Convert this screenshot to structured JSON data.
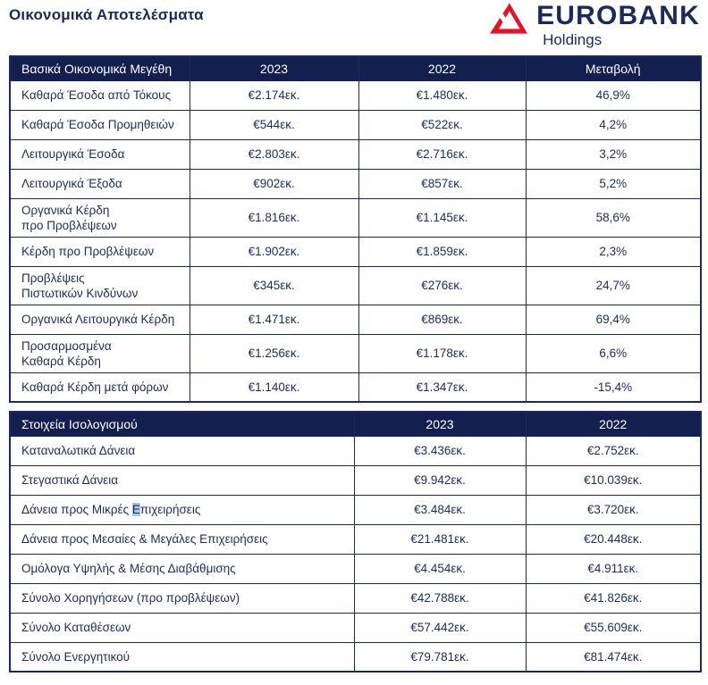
{
  "page_title": "Οικονομικά Αποτελέσματα",
  "logo": {
    "brand": "EUROBANK",
    "subtitle": "Holdings",
    "icon": "eurobank-triangle-icon",
    "red": "#E3132C",
    "navy": "#1C2A5A"
  },
  "colors": {
    "header_background": "#131F4E",
    "border_navy": "#1B2A5B",
    "text_navy": "#1E2C5E",
    "selection_highlight": "#A9C7E8"
  },
  "results_table": {
    "headers": {
      "label": "Βασικά Οικονομικά Μεγέθη",
      "col2023": "2023",
      "col2022": "2022",
      "change": "Μεταβολή"
    },
    "rows": [
      {
        "label": "Καθαρά Έσοδα από Τόκους",
        "v2023": "€2.174εκ.",
        "v2022": "€1.480εκ.",
        "change": "46,9%"
      },
      {
        "label": "Καθαρά Έσοδα Προμηθειών",
        "v2023": "€544εκ.",
        "v2022": "€522εκ.",
        "change": "4,2%"
      },
      {
        "label": "Λειτουργικά Έσοδα",
        "v2023": "€2.803εκ.",
        "v2022": "€2.716εκ.",
        "change": "3,2%"
      },
      {
        "label": "Λειτουργικά Έξοδα",
        "v2023": "€902εκ.",
        "v2022": "€857εκ.",
        "change": "5,2%"
      },
      {
        "label": "Οργανικά Κέρδη\nπρο Προβλέψεων",
        "v2023": "€1.816εκ.",
        "v2022": "€1.145εκ.",
        "change": "58,6%"
      },
      {
        "label": "Κέρδη προ Προβλέψεων",
        "v2023": "€1.902εκ.",
        "v2022": "€1.859εκ.",
        "change": "2,3%"
      },
      {
        "label": "Προβλέψεις\nΠιστωτικών Κινδύνων",
        "v2023": "€345εκ.",
        "v2022": "€276εκ.",
        "change": "24,7%"
      },
      {
        "label": "Οργανικά Λειτουργικά Κέρδη",
        "v2023": "€1.471εκ.",
        "v2022": "€869εκ.",
        "change": "69,4%"
      },
      {
        "label": "Προσαρμοσμένα\nΚαθαρά Κέρδη",
        "v2023": "€1.256εκ.",
        "v2022": "€1.178εκ.",
        "change": "6,6%"
      },
      {
        "label": "Καθαρά Κέρδη μετά φόρων",
        "v2023": "€1.140εκ.",
        "v2022": "€1.347εκ.",
        "change": "-15,4%"
      }
    ]
  },
  "balance_table": {
    "headers": {
      "label": "Στοιχεία Ισολογισμού",
      "col2023": "2023",
      "col2022": "2022"
    },
    "rows": [
      {
        "label": "Καταναλωτικά Δάνεια",
        "v2023": "€3.436εκ.",
        "v2022": "€2.752εκ."
      },
      {
        "label": "Στεγαστικά Δάνεια",
        "v2023": "€9.942εκ.",
        "v2022": "€10.039εκ."
      },
      {
        "label": "Δάνεια προς Μικρές Επιχειρήσεις",
        "selection": {
          "before": "Δάνεια προς Μικρές ",
          "selected": "Ε",
          "after": "πιχειρήσεις"
        },
        "v2023": "€3.484εκ.",
        "v2022": "€3.720εκ."
      },
      {
        "label": "Δάνεια προς Μεσαίες & Μεγάλες Επιχειρήσεις",
        "v2023": "€21.481εκ.",
        "v2022": "€20.448εκ."
      },
      {
        "label": "Ομόλογα Υψηλής & Μέσης Διαβάθμισης",
        "v2023": "€4.454εκ.",
        "v2022": "€4.911εκ."
      },
      {
        "label": "Σύνολο Χορηγήσεων (προ προβλέψεων)",
        "v2023": "€42.788εκ.",
        "v2022": "€41.826εκ."
      },
      {
        "label": "Σύνολο Καταθέσεων",
        "v2023": "€57.442εκ.",
        "v2022": "€55.609εκ."
      },
      {
        "label": "Σύνολο Ενεργητικού",
        "v2023": "€79.781εκ.",
        "v2022": "€81.474εκ."
      }
    ]
  }
}
